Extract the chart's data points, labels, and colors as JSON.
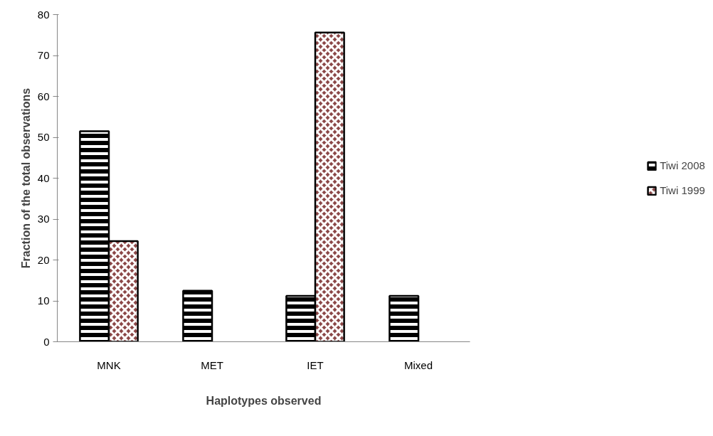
{
  "chart_data": {
    "type": "bar",
    "xlabel": "Haplotypes observed",
    "ylabel": "Fraction of the total observations",
    "categories": [
      "MNK",
      "MET",
      "IET",
      "Mixed"
    ],
    "series": [
      {
        "name": "Tiwi 2008",
        "color": "#000000",
        "values": [
          51.5,
          12.5,
          11.2,
          11.2
        ]
      },
      {
        "name": "Tiwi 1999",
        "color": "#8b4747",
        "values": [
          24.6,
          null,
          75.6,
          null
        ]
      }
    ],
    "ylim": [
      0,
      80
    ],
    "yticks": [
      0,
      10,
      20,
      30,
      40,
      50,
      60,
      70,
      80
    ],
    "grid": false,
    "legend": "right"
  }
}
